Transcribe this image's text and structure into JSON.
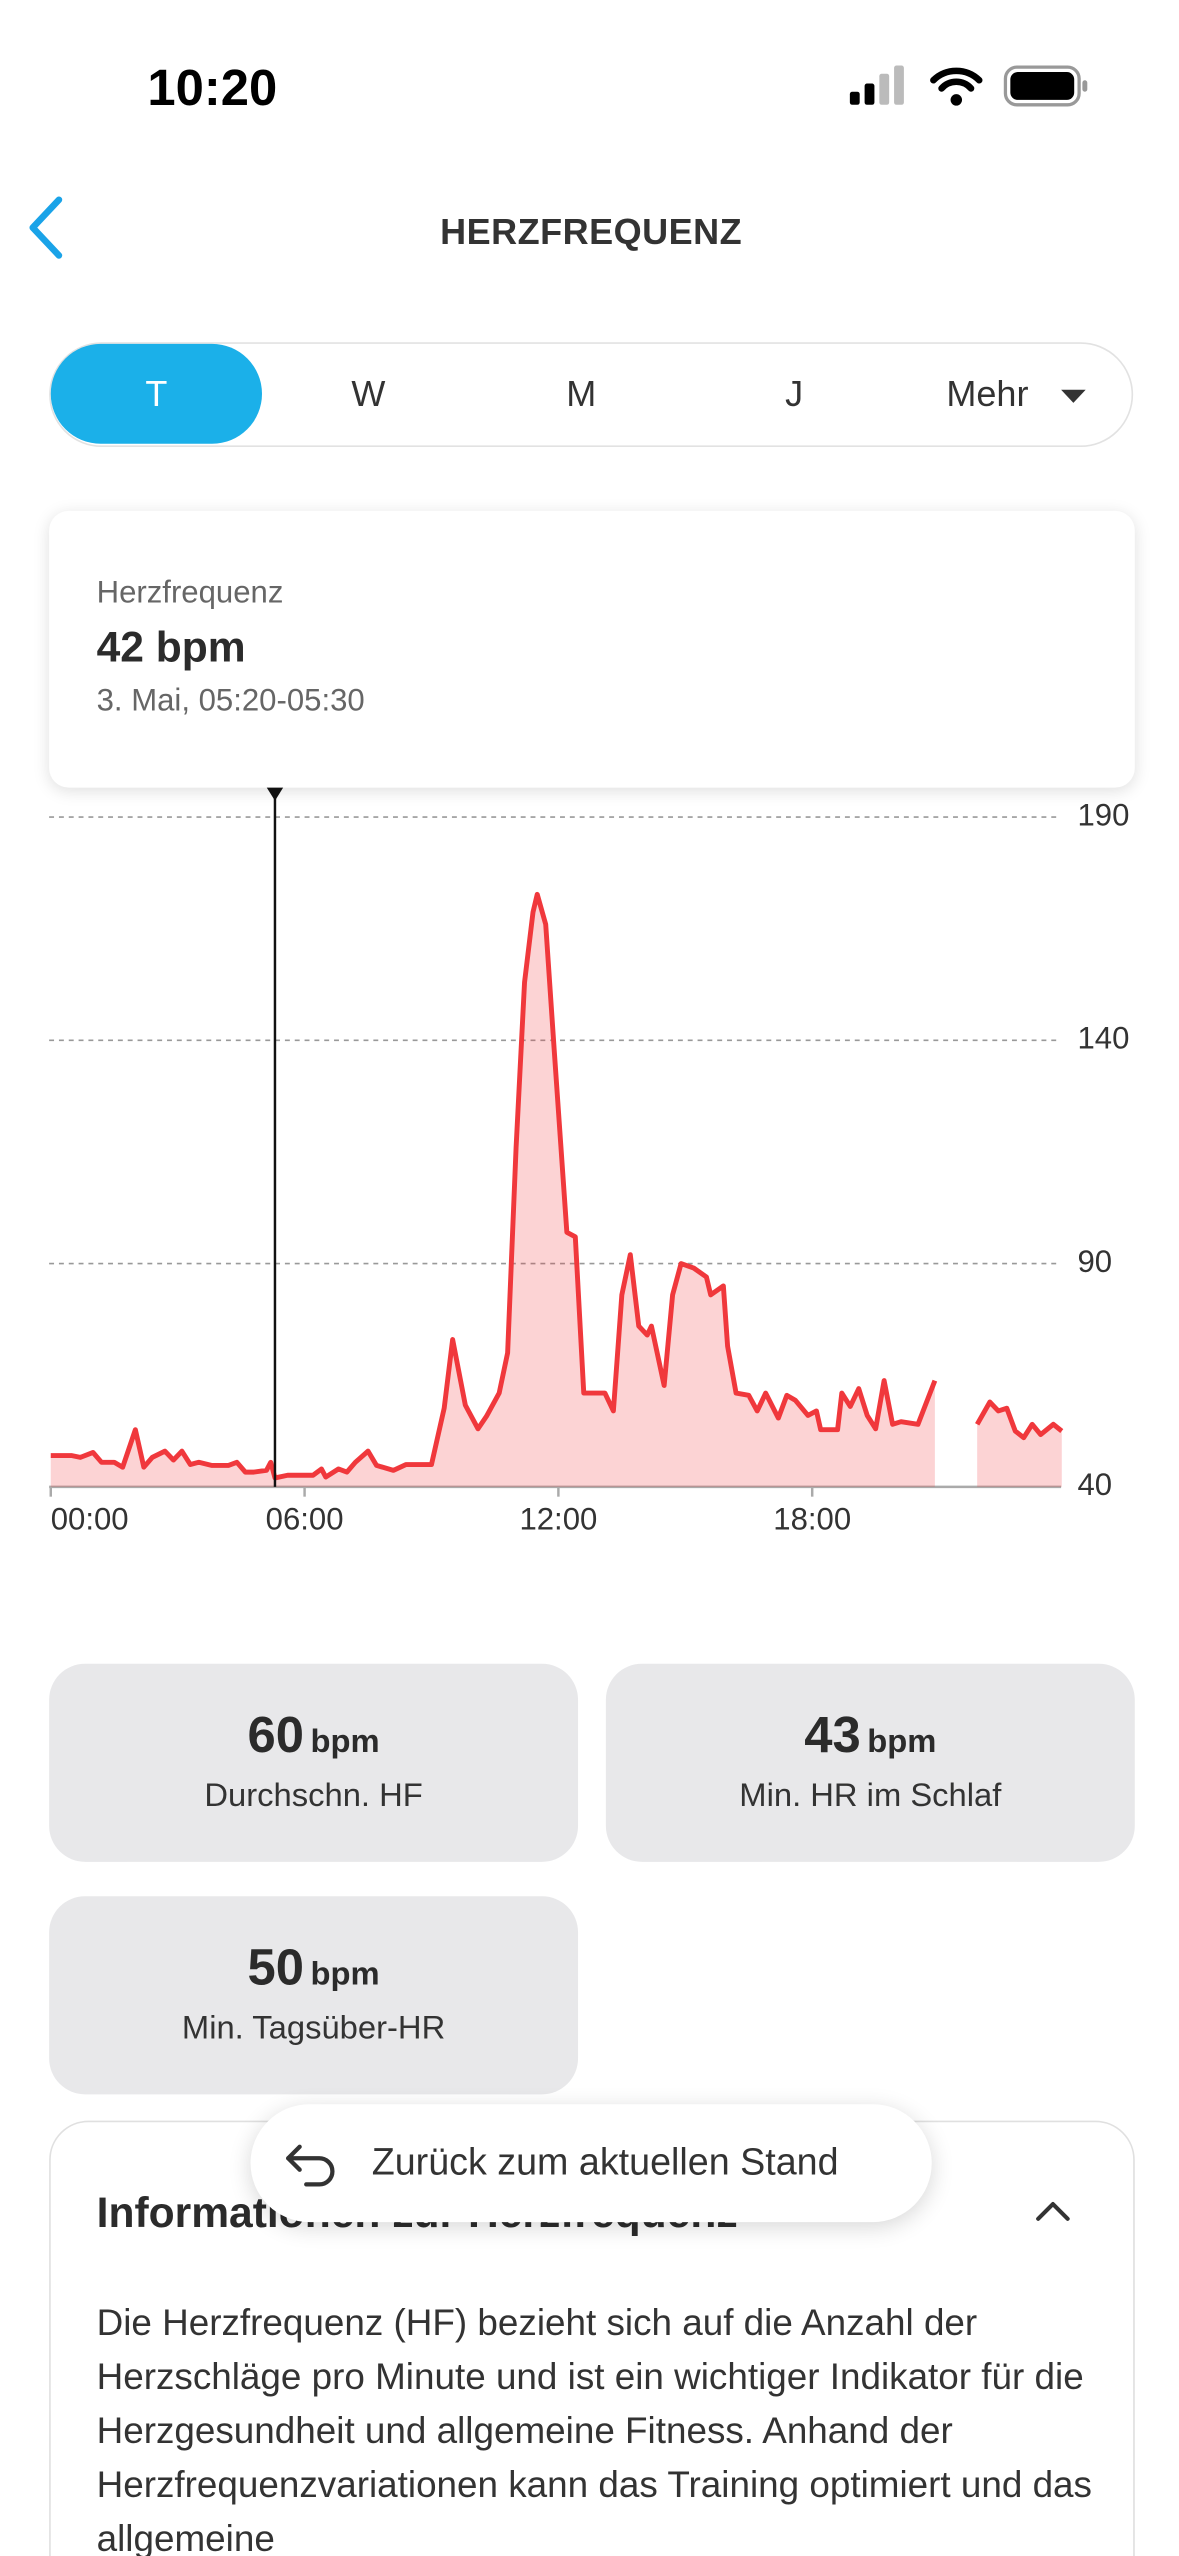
{
  "status_bar": {
    "time": "10:20"
  },
  "header": {
    "title": "HERZFREQUENZ"
  },
  "tabs": [
    "T",
    "W",
    "M",
    "J",
    "Mehr"
  ],
  "tooltip": {
    "label": "Herzfrequenz",
    "value": "42 bpm",
    "date": "3. Mai, 05:20-05:30"
  },
  "chart_data": {
    "type": "line",
    "color": "#f0383c",
    "x": [
      0,
      0.5,
      0.7,
      1.0,
      1.2,
      1.5,
      1.7,
      2.0,
      2.2,
      2.4,
      2.7,
      2.9,
      3.1,
      3.3,
      3.5,
      3.8,
      4.2,
      4.4,
      4.6,
      4.8,
      5.1,
      5.2,
      5.3,
      5.6,
      6.2,
      6.4,
      6.5,
      6.8,
      7.0,
      7.2,
      7.5,
      7.7,
      8.1,
      8.4,
      9.0,
      9.3,
      9.5,
      9.8,
      10.1,
      10.3,
      10.6,
      10.8,
      11.0,
      11.2,
      11.4,
      11.5,
      11.7,
      11.9,
      12.2,
      12.4,
      12.6,
      12.8,
      13.1,
      13.3,
      13.5,
      13.7,
      13.9,
      14.1,
      14.2,
      14.5,
      14.7,
      14.9,
      15.2,
      15.5,
      15.6,
      15.9,
      16.0,
      16.2,
      16.5,
      16.7,
      16.9,
      17.2,
      17.4,
      17.6,
      17.9,
      18.1,
      18.2,
      18.6,
      18.7,
      18.9,
      19.1,
      19.3,
      19.5,
      19.7,
      19.9,
      20.1,
      20.5,
      20.9,
      21.4,
      21.9,
      22.2,
      22.4,
      22.6,
      22.8,
      23.0,
      23.2,
      23.4,
      23.7,
      23.9
    ],
    "values": [
      47,
      47,
      46.6,
      47.7,
      45.5,
      45.5,
      44.4,
      52.8,
      44.4,
      46.6,
      48,
      46,
      48,
      45,
      45.5,
      44.8,
      44.8,
      45.5,
      43.3,
      43.3,
      43.7,
      45.5,
      42,
      42.6,
      42.6,
      44,
      42.2,
      44,
      43.3,
      45.5,
      48,
      44.8,
      43.7,
      45,
      45,
      57.6,
      73,
      58.3,
      53,
      55.8,
      61,
      70,
      116,
      153,
      168.7,
      172.7,
      166,
      138,
      97,
      96,
      61,
      61,
      61,
      57,
      83,
      92,
      76,
      74,
      76,
      62.7,
      83,
      90,
      89,
      87,
      83,
      85,
      71.5,
      61,
      60.5,
      57,
      61,
      55.4,
      60.5,
      59.4,
      56,
      57,
      52.8,
      52.8,
      61,
      58,
      62,
      56,
      53,
      63.8,
      54,
      54.6,
      54,
      63.8,
      null,
      54,
      59,
      57,
      57.6,
      52.5,
      51,
      54,
      51.7,
      54,
      52.5
    ],
    "xlim": [
      0,
      24
    ],
    "xticks": [
      {
        "value": 0,
        "label": "00:00"
      },
      {
        "value": 6,
        "label": "06:00"
      },
      {
        "value": 12,
        "label": "12:00"
      },
      {
        "value": 18,
        "label": "18:00"
      }
    ],
    "ylim": [
      40,
      190
    ],
    "yticks": [
      40,
      90,
      140,
      190
    ],
    "grid": true
  },
  "stats": [
    {
      "value": "60",
      "unit": "bpm",
      "label": "Durchschn. HF"
    },
    {
      "value": "43",
      "unit": "bpm",
      "label": "Min. HR im Schlaf"
    },
    {
      "value": "50",
      "unit": "bpm",
      "label": "Min. Tagsüber-HR"
    }
  ],
  "toast": "Zurück zum aktuellen Stand",
  "info": {
    "title": "Informationen zur Herzfrequenz",
    "text": "Die Herzfrequenz (HF) bezieht sich auf die Anzahl der Herzschläge pro Minute und ist ein wichtiger Indikator für die Herzgesundheit und allgemeine Fitness. Anhand der Herzfrequenzvariationen kann das Training optimiert und das allgemeine"
  }
}
